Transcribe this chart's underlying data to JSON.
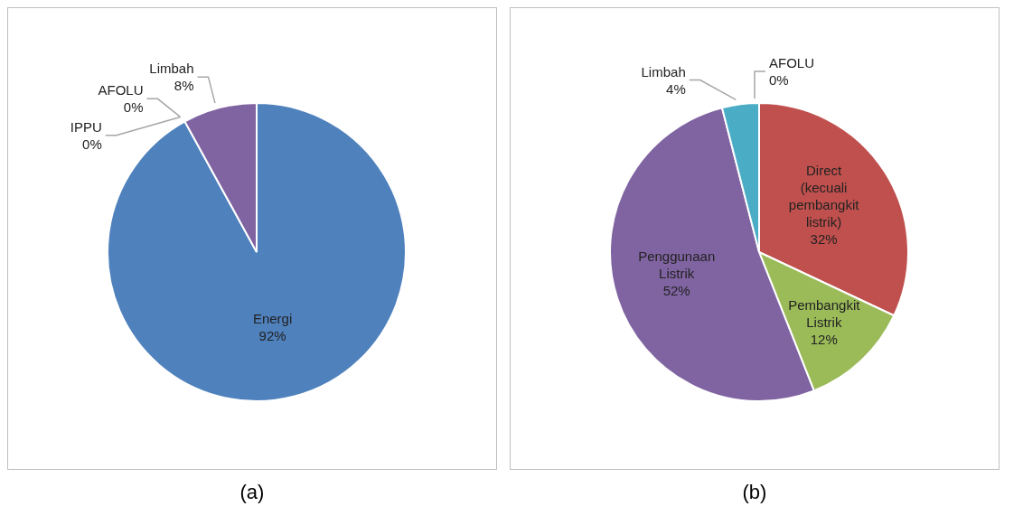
{
  "chart_data": [
    {
      "type": "pie",
      "title": "(a)",
      "categories": [
        "Energi",
        "IPPU",
        "AFOLU",
        "Limbah"
      ],
      "values": [
        92,
        0,
        0,
        8
      ],
      "colors": [
        "#4f81bd",
        "#c0504d",
        "#9bbb59",
        "#8064a2"
      ],
      "value_labels": [
        "92%",
        "0%",
        "0%",
        "8%"
      ]
    },
    {
      "type": "pie",
      "title": "(b)",
      "categories": [
        "Direct (kecuali pembangkit listrik)",
        "Pembangkit Listrik",
        "Penggunaan Listrik",
        "Limbah",
        "AFOLU"
      ],
      "values": [
        32,
        12,
        52,
        4,
        0
      ],
      "colors": [
        "#c0504d",
        "#9bbb59",
        "#8064a2",
        "#4bacc6",
        "#1f4e79"
      ],
      "value_labels": [
        "32%",
        "12%",
        "52%",
        "4%",
        "0%"
      ]
    }
  ]
}
